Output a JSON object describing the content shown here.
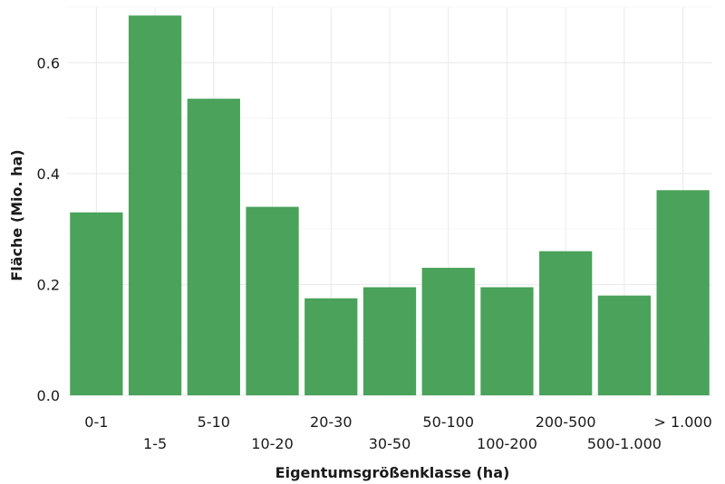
{
  "chart_data": {
    "type": "bar",
    "categories": [
      "0-1",
      "1-5",
      "5-10",
      "10-20",
      "20-30",
      "30-50",
      "50-100",
      "100-200",
      "200-500",
      "500-1.000",
      "> 1.000"
    ],
    "values": [
      0.33,
      0.685,
      0.535,
      0.34,
      0.175,
      0.195,
      0.23,
      0.195,
      0.26,
      0.18,
      0.37
    ],
    "title": "",
    "xlabel": "Eigentumsgrößenklasse (ha)",
    "ylabel": "Fläche (Mio. ha)",
    "ylim": [
      0,
      0.7
    ],
    "yticks": [
      0.0,
      0.2,
      0.4,
      0.6
    ],
    "ytick_labels": [
      "0.0",
      "0.2",
      "0.4",
      "0.6"
    ],
    "xtick_rows": "alternating",
    "grid": true,
    "legend": "none",
    "bar_color": "#4aa25b"
  }
}
